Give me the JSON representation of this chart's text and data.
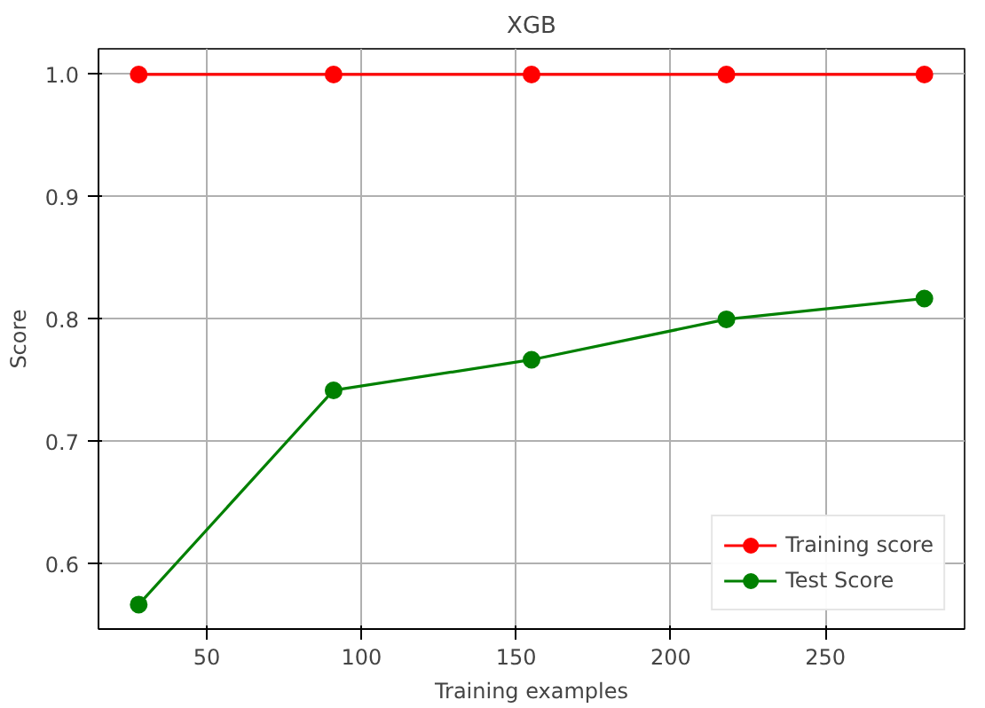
{
  "chart_data": {
    "type": "line",
    "title": "XGB",
    "xlabel": "Training examples",
    "ylabel": "Score",
    "x": [
      28,
      91,
      155,
      218,
      282
    ],
    "series": [
      {
        "name": "Training score",
        "color": "#ff0000",
        "values": [
          1.0,
          1.0,
          1.0,
          1.0,
          1.0
        ]
      },
      {
        "name": "Test Score",
        "color": "#008000",
        "values": [
          0.567,
          0.742,
          0.767,
          0.8,
          0.817
        ]
      }
    ],
    "xlim": [
      15,
      295
    ],
    "ylim": [
      0.547,
      1.021
    ],
    "xticks": [
      50,
      100,
      150,
      200,
      250
    ],
    "yticks": [
      {
        "value": 0.6,
        "label": "0.6"
      },
      {
        "value": 0.7,
        "label": "0.7"
      },
      {
        "value": 0.8,
        "label": "0.8"
      },
      {
        "value": 0.9,
        "label": "0.9"
      },
      {
        "value": 1.0,
        "label": "1.0"
      }
    ],
    "grid": true,
    "legend": "bottom right",
    "marker": "circle",
    "line_style": "solid"
  }
}
